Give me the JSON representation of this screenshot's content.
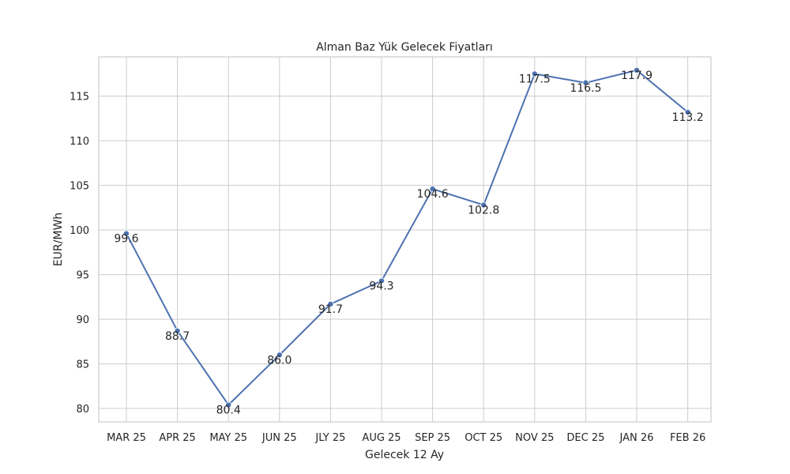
{
  "chart_data": {
    "type": "line",
    "title": "Alman Baz Yük Gelecek Fiyatları",
    "xlabel": "Gelecek 12 Ay",
    "ylabel": "EUR/MWh",
    "categories": [
      "MAR 25",
      "APR 25",
      "MAY 25",
      "JUN 25",
      "JLY 25",
      "AUG 25",
      "SEP 25",
      "OCT 25",
      "NOV 25",
      "DEC 25",
      "JAN 26",
      "FEB 26"
    ],
    "series": [
      {
        "name": "EUR/MWh",
        "values": [
          99.6,
          88.7,
          80.4,
          86.0,
          91.7,
          94.3,
          104.6,
          102.8,
          117.5,
          116.5,
          117.9,
          113.2
        ],
        "labels": [
          "99.6",
          "88.7",
          "80.4",
          "86.0",
          "91.7",
          "94.3",
          "104.6",
          "102.8",
          "117.5",
          "116.5",
          "117.9",
          "113.2"
        ],
        "color": "#4c72b0"
      }
    ],
    "ylim": [
      78.5,
      119.4
    ],
    "yticks": [
      80,
      85,
      90,
      95,
      100,
      105,
      110,
      115
    ],
    "ytick_labels": [
      "80",
      "85",
      "90",
      "95",
      "100",
      "105",
      "110",
      "115"
    ],
    "grid": true,
    "legend": "none"
  }
}
